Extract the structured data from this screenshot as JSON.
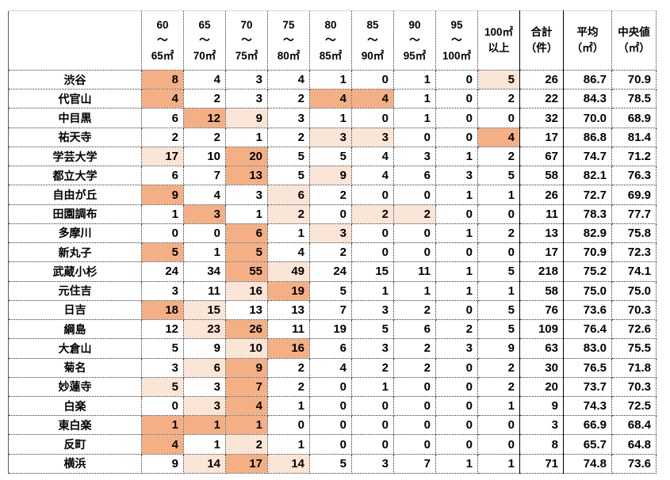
{
  "table": {
    "corner_label": "",
    "bin_headers": [
      "60\n～\n65㎡",
      "65\n～\n70㎡",
      "70\n～\n75㎡",
      "75\n～\n80㎡",
      "80\n～\n85㎡",
      "85\n～\n90㎡",
      "90\n～\n95㎡",
      "95\n～\n100㎡",
      "100㎡\n以上"
    ],
    "summary_headers": [
      "合計\n（件）",
      "平均\n（㎡）",
      "中央値\n（㎡）"
    ],
    "highlight_colors": {
      "top": "#F4B084",
      "second": "#FBE5D6"
    },
    "rows": [
      {
        "station": "渋谷",
        "counts": [
          8,
          4,
          3,
          4,
          1,
          0,
          1,
          0,
          5
        ],
        "hl": [
          1,
          0,
          0,
          0,
          0,
          0,
          0,
          0,
          2
        ],
        "total": 26,
        "mean": "86.7",
        "median": "70.9"
      },
      {
        "station": "代官山",
        "counts": [
          4,
          2,
          3,
          2,
          4,
          4,
          1,
          0,
          2
        ],
        "hl": [
          1,
          0,
          0,
          0,
          1,
          1,
          0,
          0,
          0
        ],
        "total": 22,
        "mean": "84.3",
        "median": "78.5"
      },
      {
        "station": "中目黒",
        "counts": [
          6,
          12,
          9,
          3,
          1,
          0,
          1,
          0,
          0
        ],
        "hl": [
          0,
          1,
          2,
          0,
          0,
          0,
          0,
          0,
          0
        ],
        "total": 32,
        "mean": "70.0",
        "median": "68.9"
      },
      {
        "station": "祐天寺",
        "counts": [
          2,
          2,
          1,
          2,
          3,
          3,
          0,
          0,
          4
        ],
        "hl": [
          0,
          0,
          0,
          0,
          2,
          2,
          0,
          0,
          1
        ],
        "total": 17,
        "mean": "86.8",
        "median": "81.4"
      },
      {
        "station": "学芸大学",
        "counts": [
          17,
          10,
          20,
          5,
          5,
          4,
          3,
          1,
          2
        ],
        "hl": [
          2,
          0,
          1,
          0,
          0,
          0,
          0,
          0,
          0
        ],
        "total": 67,
        "mean": "74.7",
        "median": "71.2"
      },
      {
        "station": "都立大学",
        "counts": [
          6,
          7,
          13,
          5,
          9,
          4,
          6,
          3,
          5
        ],
        "hl": [
          0,
          0,
          1,
          0,
          2,
          0,
          0,
          0,
          0
        ],
        "total": 58,
        "mean": "82.1",
        "median": "76.3"
      },
      {
        "station": "自由が丘",
        "counts": [
          9,
          4,
          3,
          6,
          2,
          0,
          0,
          1,
          1
        ],
        "hl": [
          1,
          0,
          0,
          2,
          0,
          0,
          0,
          0,
          0
        ],
        "total": 26,
        "mean": "72.7",
        "median": "69.9"
      },
      {
        "station": "田園調布",
        "counts": [
          1,
          3,
          1,
          2,
          0,
          2,
          2,
          0,
          0
        ],
        "hl": [
          0,
          1,
          0,
          2,
          0,
          2,
          2,
          0,
          0
        ],
        "total": 11,
        "mean": "78.3",
        "median": "77.7"
      },
      {
        "station": "多摩川",
        "counts": [
          0,
          0,
          6,
          1,
          3,
          0,
          0,
          1,
          2
        ],
        "hl": [
          0,
          0,
          1,
          0,
          2,
          0,
          0,
          0,
          0
        ],
        "total": 13,
        "mean": "82.9",
        "median": "75.8"
      },
      {
        "station": "新丸子",
        "counts": [
          5,
          1,
          5,
          4,
          2,
          0,
          0,
          0,
          0
        ],
        "hl": [
          1,
          0,
          1,
          0,
          0,
          0,
          0,
          0,
          0
        ],
        "total": 17,
        "mean": "70.9",
        "median": "72.3"
      },
      {
        "station": "武蔵小杉",
        "counts": [
          24,
          34,
          55,
          49,
          24,
          15,
          11,
          1,
          5
        ],
        "hl": [
          0,
          0,
          1,
          2,
          0,
          0,
          0,
          0,
          0
        ],
        "total": 218,
        "mean": "75.2",
        "median": "74.1"
      },
      {
        "station": "元住吉",
        "counts": [
          3,
          11,
          16,
          19,
          5,
          1,
          1,
          1,
          1
        ],
        "hl": [
          0,
          0,
          2,
          1,
          0,
          0,
          0,
          0,
          0
        ],
        "total": 58,
        "mean": "75.0",
        "median": "75.0"
      },
      {
        "station": "日吉",
        "counts": [
          18,
          15,
          13,
          13,
          7,
          3,
          2,
          0,
          5
        ],
        "hl": [
          1,
          2,
          0,
          0,
          0,
          0,
          0,
          0,
          0
        ],
        "total": 76,
        "mean": "73.6",
        "median": "70.3"
      },
      {
        "station": "綱島",
        "counts": [
          12,
          23,
          26,
          11,
          19,
          5,
          6,
          2,
          5
        ],
        "hl": [
          0,
          2,
          1,
          0,
          0,
          0,
          0,
          0,
          0
        ],
        "total": 109,
        "mean": "76.4",
        "median": "72.6"
      },
      {
        "station": "大倉山",
        "counts": [
          5,
          9,
          10,
          16,
          6,
          3,
          2,
          3,
          9
        ],
        "hl": [
          0,
          0,
          2,
          1,
          0,
          0,
          0,
          0,
          0
        ],
        "total": 63,
        "mean": "83.0",
        "median": "75.5"
      },
      {
        "station": "菊名",
        "counts": [
          3,
          6,
          9,
          2,
          4,
          2,
          2,
          0,
          2
        ],
        "hl": [
          0,
          2,
          1,
          0,
          0,
          0,
          0,
          0,
          0
        ],
        "total": 30,
        "mean": "76.5",
        "median": "71.8"
      },
      {
        "station": "妙蓮寺",
        "counts": [
          5,
          3,
          7,
          2,
          0,
          1,
          0,
          0,
          2
        ],
        "hl": [
          2,
          0,
          1,
          0,
          0,
          0,
          0,
          0,
          0
        ],
        "total": 20,
        "mean": "73.7",
        "median": "70.3"
      },
      {
        "station": "白楽",
        "counts": [
          0,
          3,
          4,
          1,
          0,
          0,
          0,
          0,
          1
        ],
        "hl": [
          0,
          2,
          1,
          0,
          0,
          0,
          0,
          0,
          0
        ],
        "total": 9,
        "mean": "74.3",
        "median": "72.5"
      },
      {
        "station": "東白楽",
        "counts": [
          1,
          1,
          1,
          0,
          0,
          0,
          0,
          0,
          0
        ],
        "hl": [
          1,
          1,
          1,
          0,
          0,
          0,
          0,
          0,
          0
        ],
        "total": 3,
        "mean": "66.9",
        "median": "68.4"
      },
      {
        "station": "反町",
        "counts": [
          4,
          1,
          2,
          1,
          0,
          0,
          0,
          0,
          0
        ],
        "hl": [
          1,
          0,
          2,
          0,
          0,
          0,
          0,
          0,
          0
        ],
        "total": 8,
        "mean": "65.7",
        "median": "64.8"
      },
      {
        "station": "横浜",
        "counts": [
          9,
          14,
          17,
          14,
          5,
          3,
          7,
          1,
          1
        ],
        "hl": [
          0,
          2,
          1,
          2,
          0,
          0,
          0,
          0,
          0
        ],
        "total": 71,
        "mean": "74.8",
        "median": "73.6"
      }
    ]
  }
}
